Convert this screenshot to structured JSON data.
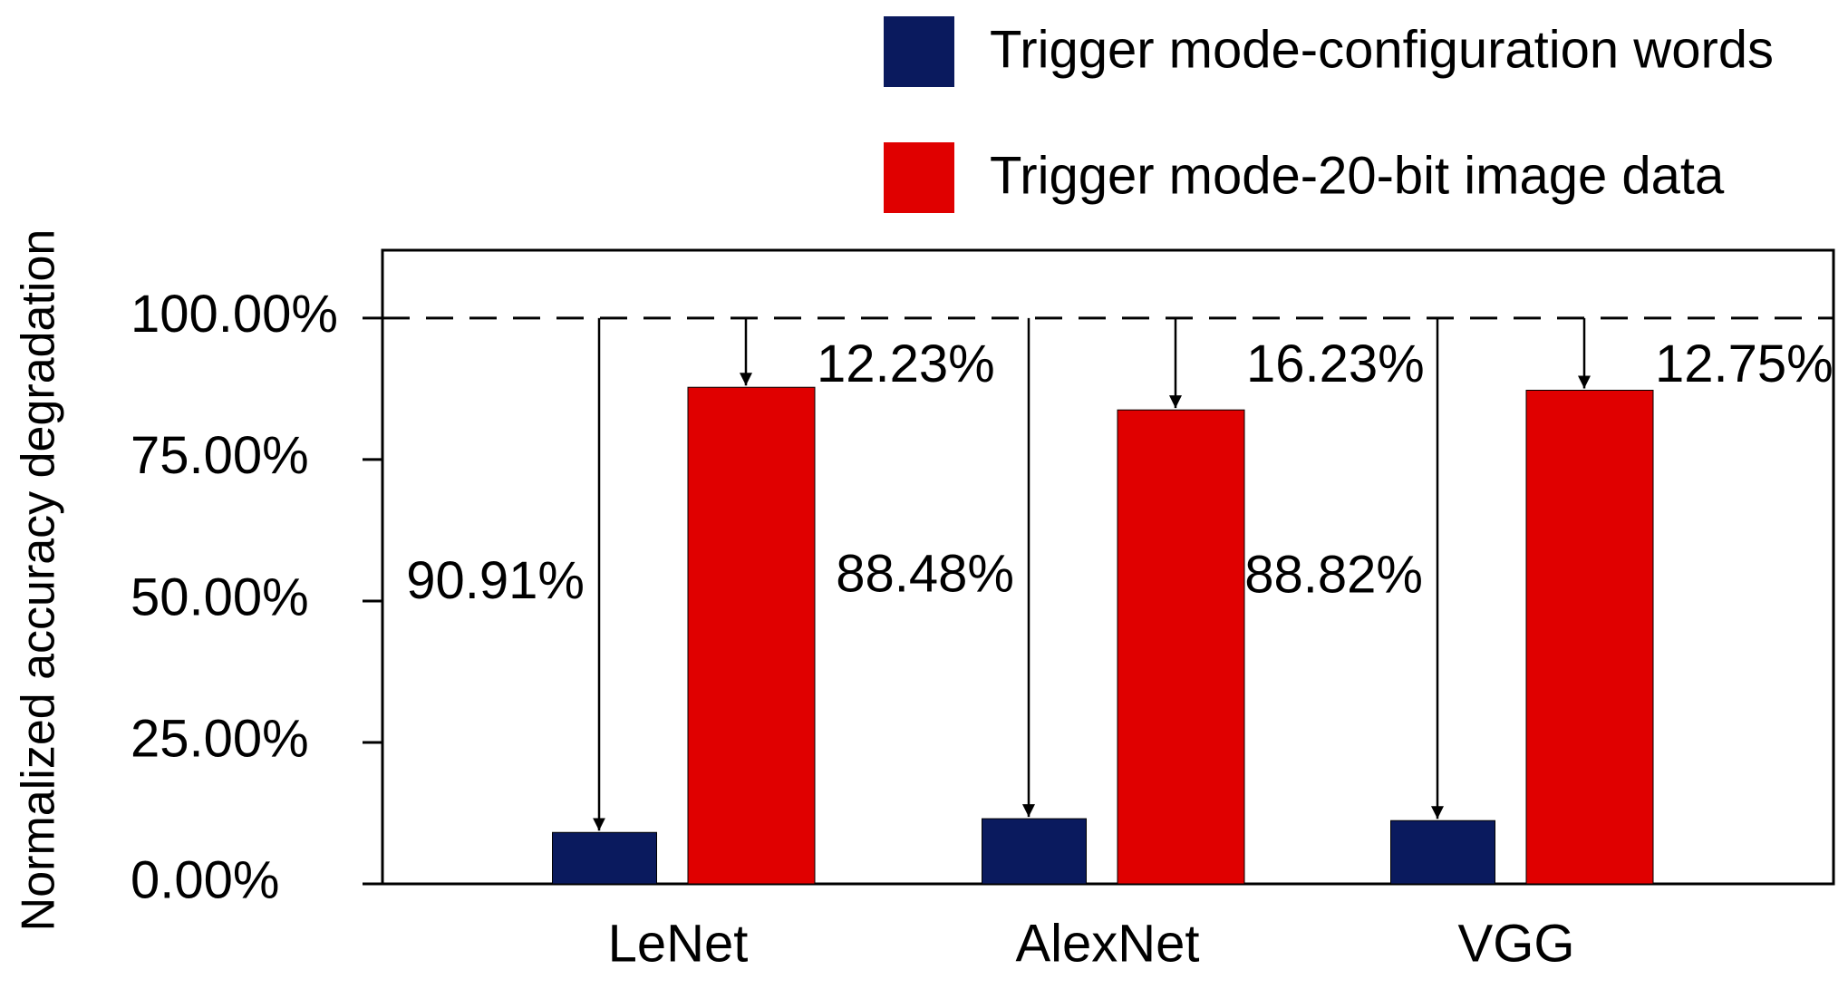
{
  "chart_data": {
    "type": "bar",
    "y_label": "Normalized accuracy degradation",
    "categories": [
      "LeNet",
      "AlexNet",
      "VGG"
    ],
    "series": [
      {
        "name": "Trigger mode-configuration words",
        "color": "#0a1a5e",
        "values": [
          9.09,
          11.52,
          11.18
        ],
        "drop_labels": [
          "90.91%",
          "88.48%",
          "88.82%"
        ]
      },
      {
        "name": "Trigger mode-20-bit image data",
        "color": "#e00000",
        "values": [
          87.77,
          83.77,
          87.25
        ],
        "drop_labels": [
          "12.23%",
          "16.23%",
          "12.75%"
        ]
      }
    ],
    "reference_line": 100,
    "ylim": [
      0,
      112
    ],
    "yticks": [
      {
        "value": 0,
        "label": "0.00%"
      },
      {
        "value": 25,
        "label": "25.00%"
      },
      {
        "value": 50,
        "label": "50.00%"
      },
      {
        "value": 75,
        "label": "75.00%"
      },
      {
        "value": 100,
        "label": "100.00%"
      }
    ],
    "grid": false
  }
}
